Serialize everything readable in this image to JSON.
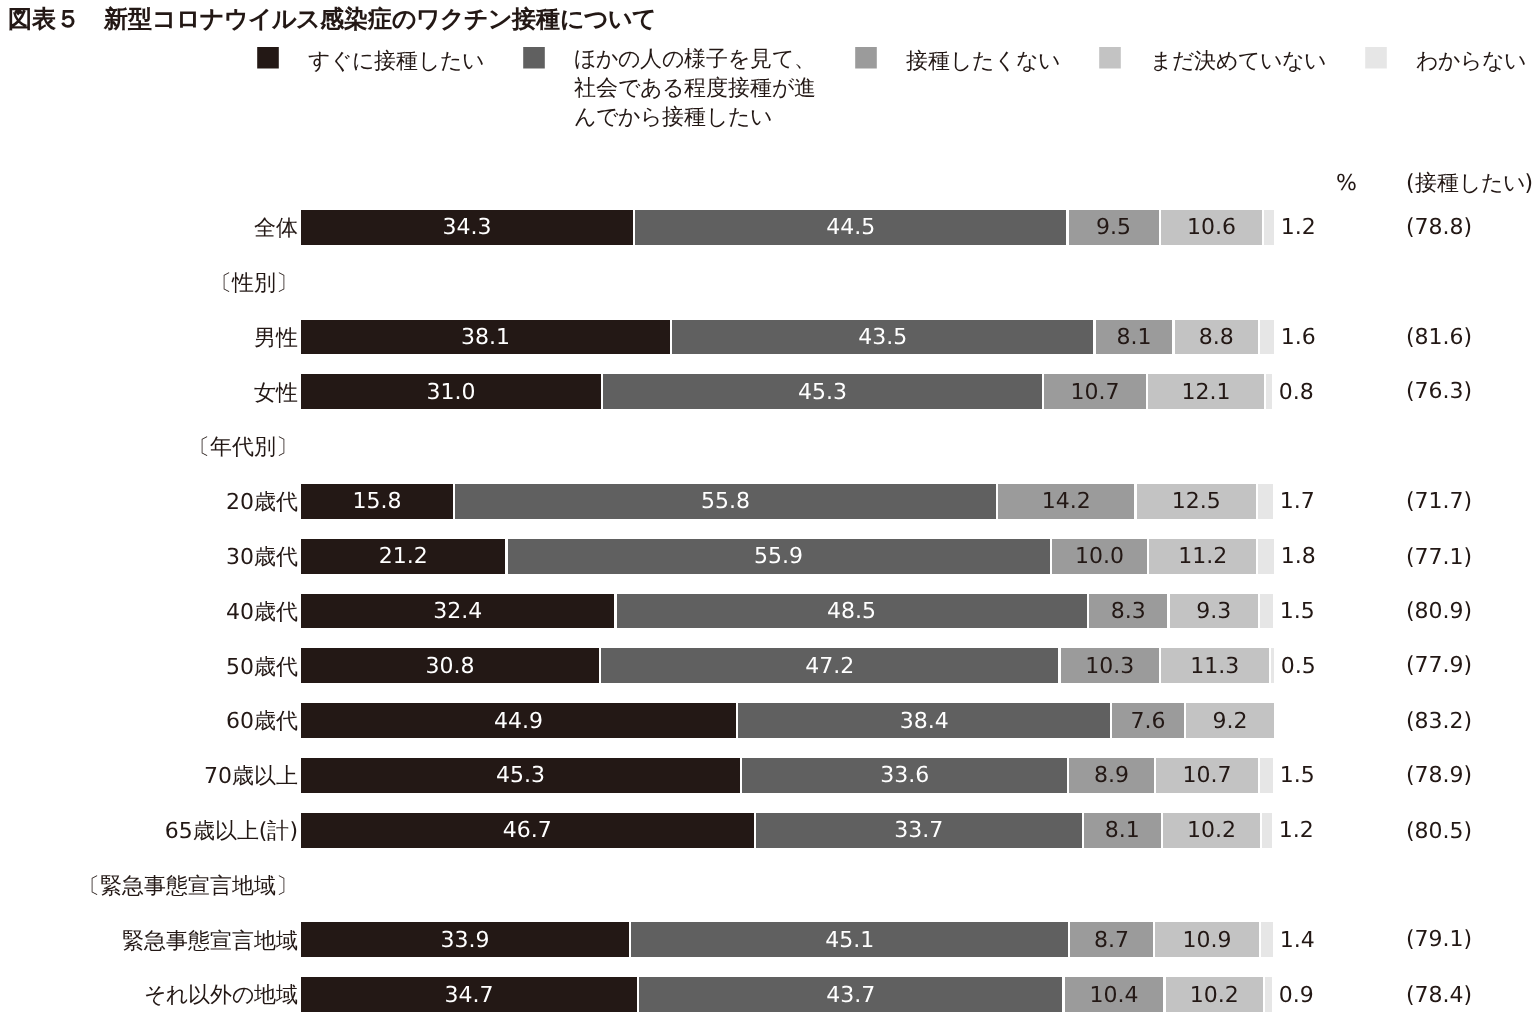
{
  "chart_data": {
    "type": "bar",
    "orientation": "horizontal",
    "stacked": true,
    "title": "図表５　新型コロナウイルス感染症のワクチン接種について",
    "categories": [
      "全体",
      "〔性別〕",
      "男性",
      "女性",
      "〔年代別〕",
      "20歳代",
      "30歳代",
      "40歳代",
      "50歳代",
      "60歳代",
      "70歳以上",
      "65歳以上(計)",
      "〔緊急事態宣言地域〕",
      "緊急事態宣言地域",
      "それ以外の地域"
    ],
    "series": [
      {
        "name": "すぐに接種したい",
        "color": "#231815",
        "values": [
          34.3,
          null,
          38.1,
          31.0,
          null,
          15.8,
          21.2,
          32.4,
          30.8,
          44.9,
          45.3,
          46.7,
          null,
          33.9,
          34.7
        ],
        "value_labels": [
          "34.3",
          null,
          "38.1",
          "31.0",
          null,
          "15.8",
          "21.2",
          "32.4",
          "30.8",
          "44.9",
          "45.3",
          "46.7",
          null,
          "33.9",
          "34.7"
        ]
      },
      {
        "name": "ほかの人の様子を見て、社会である程度接種が進んでから接種したい",
        "color": "#606060",
        "values": [
          44.5,
          null,
          43.5,
          45.3,
          null,
          55.8,
          55.9,
          48.5,
          47.2,
          38.4,
          33.6,
          33.7,
          null,
          45.1,
          43.7
        ],
        "value_labels": [
          "44.5",
          null,
          "43.5",
          "45.3",
          null,
          "55.8",
          "55.9",
          "48.5",
          "47.2",
          "38.4",
          "33.6",
          "33.7",
          null,
          "45.1",
          "43.7"
        ]
      },
      {
        "name": "接種したくない",
        "color": "#9b9b9b",
        "values": [
          9.5,
          null,
          8.1,
          10.7,
          null,
          14.2,
          10.0,
          8.3,
          10.3,
          7.6,
          8.9,
          8.1,
          null,
          8.7,
          10.4
        ],
        "value_labels": [
          "9.5",
          null,
          "8.1",
          "10.7",
          null,
          "14.2",
          "10.0",
          "8.3",
          "10.3",
          "7.6",
          "8.9",
          "8.1",
          null,
          "8.7",
          "10.4"
        ]
      },
      {
        "name": "まだ決めていない",
        "color": "#c3c3c3",
        "values": [
          10.6,
          null,
          8.8,
          12.1,
          null,
          12.5,
          11.2,
          9.3,
          11.3,
          9.2,
          10.7,
          10.2,
          null,
          10.9,
          10.2
        ],
        "value_labels": [
          "10.6",
          null,
          "8.8",
          "12.1",
          null,
          "12.5",
          "11.2",
          "9.3",
          "11.3",
          "9.2",
          "10.7",
          "10.2",
          null,
          "10.9",
          "10.2"
        ]
      },
      {
        "name": "わからない",
        "color": "#e6e6e6",
        "values": [
          1.2,
          null,
          1.6,
          0.8,
          null,
          1.7,
          1.8,
          1.5,
          0.5,
          null,
          1.5,
          1.2,
          null,
          1.4,
          0.9
        ],
        "value_labels": [
          "1.2",
          null,
          "1.6",
          "0.8",
          null,
          "1.7",
          "1.8",
          "1.5",
          "0.5",
          null,
          "1.5",
          "1.2",
          null,
          "1.4",
          "0.9"
        ]
      }
    ],
    "tick_labels": "y",
    "legend": "top",
    "annotations": [
      "%",
      "(接種したい)",
      "(78.8)",
      "(81.6)",
      "(76.3)",
      "(71.7)",
      "(77.1)",
      "(80.9)",
      "(77.9)",
      "(83.2)",
      "(78.9)",
      "(80.5)",
      "(79.1)",
      "(78.4)"
    ]
  }
}
